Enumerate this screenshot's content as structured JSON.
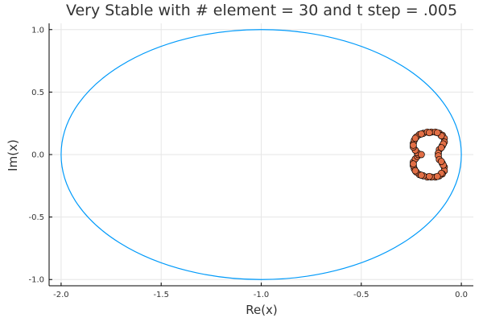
{
  "chart_data": {
    "type": "scatter",
    "title": "Very Stable with # element = 30 and t step = .005",
    "xlabel": "Re(x)",
    "ylabel": "Im(x)",
    "xlim": [
      -2.06,
      0.06
    ],
    "ylim": [
      -1.05,
      1.05
    ],
    "x_ticks": [
      -2.0,
      -1.5,
      -1.0,
      -0.5,
      0.0
    ],
    "x_tick_labels": [
      "-2.0",
      "-1.5",
      "-1.0",
      "-0.5",
      "0.0"
    ],
    "y_ticks": [
      -1.0,
      -0.5,
      0.0,
      0.5,
      1.0
    ],
    "y_tick_labels": [
      "-1.0",
      "-0.5",
      "0.0",
      "0.5",
      "1.0"
    ],
    "grid": true,
    "legend": "none",
    "colors": {
      "circle": "#009AFA",
      "points": "#E26F46",
      "point_edge": "#000000"
    },
    "series": [
      {
        "type": "line",
        "description_of_shape": "unit circle centered at (-1, 0)",
        "center": [
          -1.0,
          0.0
        ],
        "radius": 1.0
      },
      {
        "type": "scatter",
        "points": [
          [
            -0.21,
            0.16
          ],
          [
            -0.19,
            0.17
          ],
          [
            -0.17,
            0.18
          ],
          [
            -0.15,
            0.18
          ],
          [
            -0.13,
            0.18
          ],
          [
            -0.11,
            0.17
          ],
          [
            -0.095,
            0.155
          ],
          [
            -0.085,
            0.13
          ],
          [
            -0.085,
            0.1
          ],
          [
            -0.095,
            0.07
          ],
          [
            -0.11,
            0.04
          ],
          [
            -0.115,
            0.01
          ],
          [
            -0.115,
            -0.01
          ],
          [
            -0.11,
            -0.04
          ],
          [
            -0.095,
            -0.07
          ],
          [
            -0.085,
            -0.1
          ],
          [
            -0.085,
            -0.13
          ],
          [
            -0.095,
            -0.155
          ],
          [
            -0.11,
            -0.17
          ],
          [
            -0.13,
            -0.18
          ],
          [
            -0.15,
            -0.18
          ],
          [
            -0.17,
            -0.18
          ],
          [
            -0.19,
            -0.17
          ],
          [
            -0.21,
            -0.16
          ],
          [
            -0.225,
            -0.14
          ],
          [
            -0.235,
            -0.115
          ],
          [
            -0.24,
            -0.09
          ],
          [
            -0.24,
            -0.06
          ],
          [
            -0.23,
            -0.035
          ],
          [
            -0.22,
            -0.015
          ],
          [
            -0.215,
            0.0
          ],
          [
            -0.22,
            0.015
          ],
          [
            -0.23,
            0.035
          ],
          [
            -0.24,
            0.06
          ],
          [
            -0.24,
            0.09
          ],
          [
            -0.235,
            0.115
          ],
          [
            -0.225,
            0.14
          ],
          [
            -0.2,
            0.0
          ],
          [
            -0.16,
            0.175
          ],
          [
            -0.16,
            -0.175
          ],
          [
            -0.1,
            0.15
          ],
          [
            -0.1,
            -0.15
          ],
          [
            -0.12,
            0.175
          ],
          [
            -0.12,
            -0.175
          ],
          [
            -0.2,
            0.165
          ],
          [
            -0.2,
            -0.165
          ],
          [
            -0.23,
            0.13
          ],
          [
            -0.23,
            -0.13
          ],
          [
            -0.09,
            0.085
          ],
          [
            -0.09,
            -0.085
          ],
          [
            -0.24,
            0.075
          ],
          [
            -0.24,
            -0.075
          ],
          [
            -0.1,
            0.055
          ],
          [
            -0.1,
            -0.055
          ]
        ]
      }
    ]
  }
}
